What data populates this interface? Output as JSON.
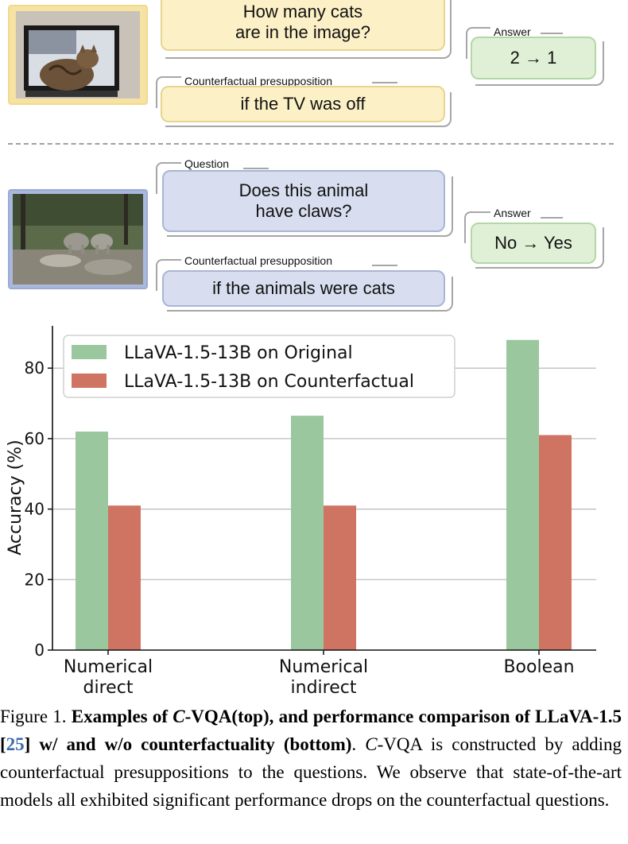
{
  "top_example": {
    "question": [
      "How many cats",
      "are in the image?"
    ],
    "answer_tag": "Answer",
    "answer": "2 → 1",
    "presupposition_tag": "Counterfactual presupposition",
    "presupposition": "if the TV was off",
    "colors": {
      "fill": "#fcf0c6",
      "border": "#e8d48e"
    }
  },
  "bottom_example": {
    "question_tag": "Question",
    "question": [
      "Does this animal",
      "have claws?"
    ],
    "answer_tag": "Answer",
    "answer": "No → Yes",
    "presupposition_tag": "Counterfactual presupposition",
    "presupposition": "if the animals were cats",
    "colors": {
      "fill": "#d8def0",
      "border": "#a9b5d6"
    }
  },
  "chart_data": {
    "type": "bar",
    "categories": [
      "Numerical\ndirect",
      "Numerical\nindirect",
      "Boolean"
    ],
    "series": [
      {
        "name": "LLaVA-1.5-13B on Original",
        "color": "#9ac79d",
        "values": [
          62,
          66.5,
          88
        ]
      },
      {
        "name": "LLaVA-1.5-13B on Counterfactual",
        "color": "#cf7462",
        "values": [
          41,
          41,
          61
        ]
      }
    ],
    "ylabel": "Accuracy (%)",
    "ylim": [
      0,
      92
    ],
    "yticks": [
      "0",
      "20",
      "40",
      "60",
      "80"
    ],
    "grid": true,
    "legend": "top-left"
  },
  "caption": {
    "figure_label": "Figure 1.",
    "bold_a": "Examples of ",
    "bold_c": "C",
    "bold_b": "-VQA(top), and performance comparison of LLaVA-1.5 [",
    "cite": "25",
    "bold_d": "] w/ and w/o counterfactuality (bottom)",
    "period": ".",
    "rest_c": "C",
    "rest": "-VQA is constructed by adding counterfactual presuppositions to the questions. We observe that state-of-the-art models all exhibited significant performance drops on the counterfactual questions."
  }
}
